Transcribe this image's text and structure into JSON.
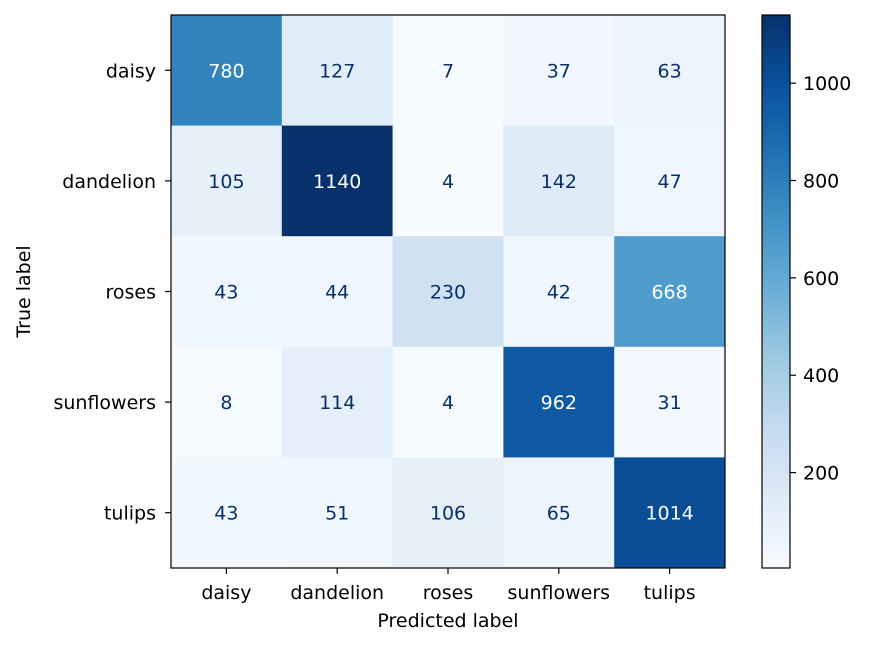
{
  "chart_data": {
    "type": "heatmap",
    "title": "",
    "xlabel": "Predicted label",
    "ylabel": "True label",
    "x_categories": [
      "daisy",
      "dandelion",
      "roses",
      "sunflowers",
      "tulips"
    ],
    "y_categories": [
      "daisy",
      "dandelion",
      "roses",
      "sunflowers",
      "tulips"
    ],
    "values": [
      [
        780,
        127,
        7,
        37,
        63
      ],
      [
        105,
        1140,
        4,
        142,
        47
      ],
      [
        43,
        44,
        230,
        42,
        668
      ],
      [
        8,
        114,
        4,
        962,
        31
      ],
      [
        43,
        51,
        106,
        65,
        1014
      ]
    ],
    "colormap": "Blues",
    "color_range": [
      4,
      1140
    ],
    "colorbar_ticks": [
      "200",
      "400",
      "600",
      "800",
      "1000"
    ],
    "colorbar_tick_values": [
      200,
      400,
      600,
      800,
      1000
    ],
    "colorbar_position": "right",
    "grid": false,
    "text_colors": {
      "light_cells": "#08306b",
      "dark_cells": "#ffffff"
    }
  }
}
